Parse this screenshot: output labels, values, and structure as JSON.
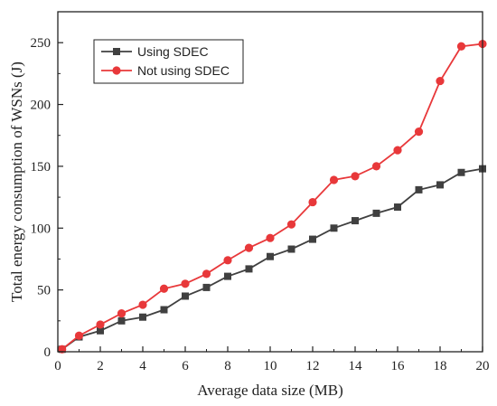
{
  "chart_data": {
    "type": "line",
    "xlabel": "Average data size (MB)",
    "ylabel": "Total energy consumption of WSNs (J)",
    "xlim": [
      0,
      20
    ],
    "ylim": [
      0,
      275
    ],
    "xticks": [
      0,
      2,
      4,
      6,
      8,
      10,
      12,
      14,
      16,
      18,
      20
    ],
    "yticks": [
      0,
      50,
      100,
      150,
      200,
      250
    ],
    "grid": false,
    "legend_position": "top-left",
    "x": [
      0.2,
      1,
      2,
      3,
      4,
      5,
      6,
      7,
      8,
      9,
      10,
      11,
      12,
      13,
      14,
      15,
      16,
      17,
      18,
      19,
      20
    ],
    "series": [
      {
        "name": "Using SDEC",
        "color": "#404040",
        "marker": "square",
        "values": [
          2,
          12,
          17,
          25,
          28,
          34,
          45,
          52,
          61,
          67,
          77,
          83,
          91,
          100,
          106,
          112,
          117,
          131,
          135,
          145,
          148
        ]
      },
      {
        "name": "Not using SDEC",
        "color": "#e8383a",
        "marker": "circle",
        "values": [
          2,
          13,
          22,
          31,
          38,
          51,
          55,
          63,
          74,
          84,
          92,
          103,
          121,
          139,
          142,
          150,
          163,
          178,
          219,
          247,
          249
        ]
      }
    ]
  }
}
